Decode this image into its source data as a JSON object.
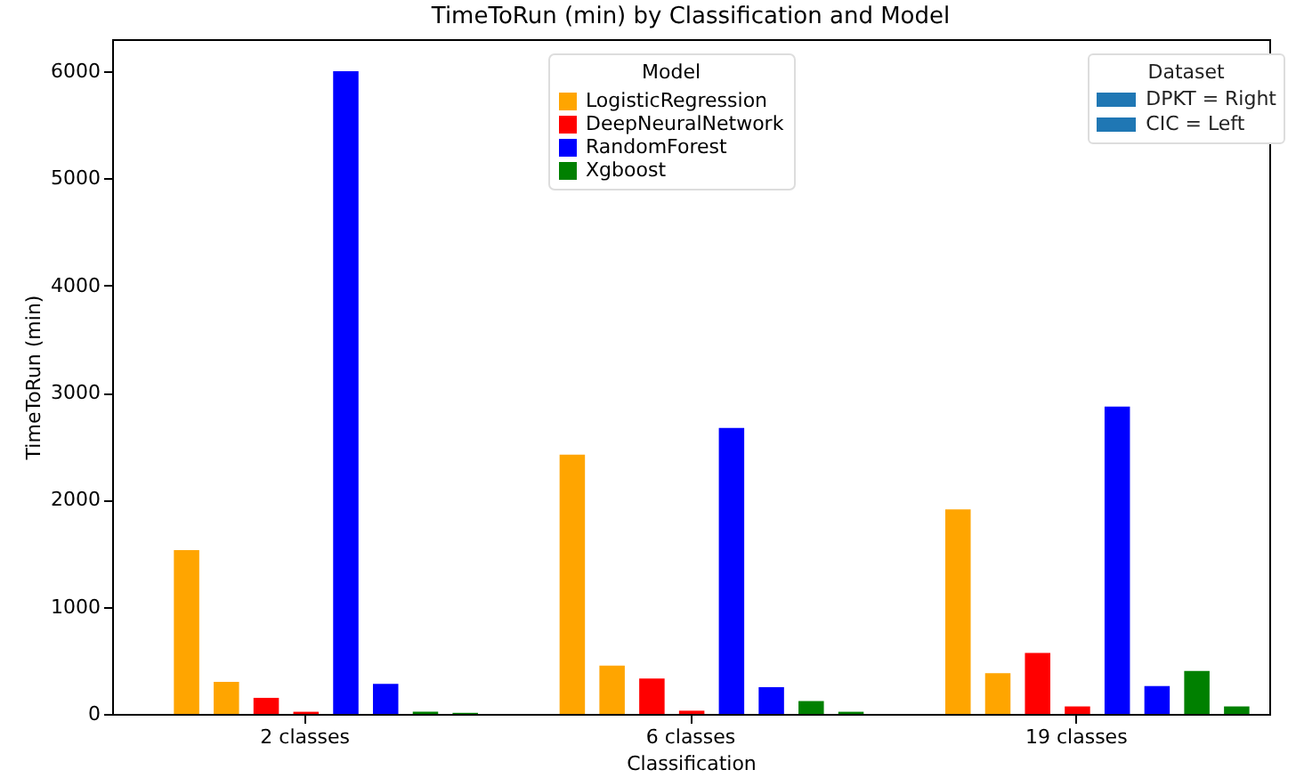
{
  "chart_data": {
    "type": "bar",
    "title": "TimeToRun (min) by Classification and Model",
    "xlabel": "Classification",
    "ylabel": "TimeToRun (min)",
    "legend_title": "Model",
    "categories": [
      "2 classes",
      "6 classes",
      "19 classes"
    ],
    "series": [
      {
        "name": "LogisticRegression",
        "color": "#ffa500",
        "values": [
          1530,
          2420,
          1910
        ]
      },
      {
        "color": "#ffa500",
        "values": [
          300,
          450,
          380
        ]
      },
      {
        "name": "DeepNeuralNetwork",
        "color": "#ff0000",
        "values": [
          150,
          330,
          570
        ]
      },
      {
        "color": "#ff0000",
        "values": [
          20,
          30,
          70
        ]
      },
      {
        "name": "RandomForest",
        "color": "#0000ff",
        "values": [
          6000,
          2670,
          2870
        ]
      },
      {
        "color": "#0000ff",
        "values": [
          280,
          250,
          260
        ]
      },
      {
        "name": "Xgboost",
        "color": "#008000",
        "values": [
          20,
          120,
          400
        ]
      },
      {
        "color": "#008000",
        "values": [
          10,
          20,
          70
        ]
      }
    ],
    "annotations": [
      "Dataset",
      "DPKT = Right",
      "CIC = Left"
    ],
    "ylim": [
      0,
      6300
    ],
    "yticks": [
      0,
      1000,
      2000,
      3000,
      4000,
      5000,
      6000
    ],
    "grid": false,
    "legend": "top"
  }
}
